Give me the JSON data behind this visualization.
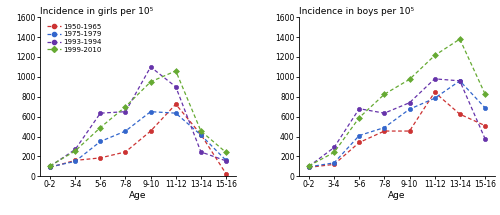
{
  "age_labels": [
    "0-2",
    "3-4",
    "5-6",
    "7-8",
    "9-10",
    "11-12",
    "13-14",
    "15-16"
  ],
  "girls": {
    "1950-1965": [
      90,
      160,
      185,
      245,
      455,
      725,
      420,
      25
    ],
    "1975-1979": [
      95,
      150,
      350,
      455,
      650,
      635,
      415,
      160
    ],
    "1993-1994": [
      100,
      270,
      635,
      650,
      1100,
      900,
      245,
      155
    ],
    "1999-2010": [
      105,
      255,
      490,
      700,
      950,
      1060,
      455,
      240
    ]
  },
  "boys": {
    "1950-1965": [
      90,
      120,
      340,
      455,
      455,
      845,
      625,
      510
    ],
    "1975-1979": [
      95,
      135,
      410,
      490,
      675,
      785,
      960,
      690
    ],
    "1993-1994": [
      100,
      290,
      680,
      635,
      740,
      980,
      960,
      380
    ],
    "1999-2010": [
      105,
      240,
      590,
      825,
      975,
      1215,
      1380,
      830
    ]
  },
  "series_colors": {
    "1950-1965": "#cc3333",
    "1975-1979": "#3366cc",
    "1993-1994": "#6633aa",
    "1999-2010": "#66aa33"
  },
  "markers": {
    "1950-1965": "o",
    "1975-1979": "o",
    "1993-1994": "o",
    "1999-2010": "D"
  },
  "ylim": [
    0,
    1600
  ],
  "yticks": [
    0,
    200,
    400,
    600,
    800,
    1000,
    1200,
    1400,
    1600
  ],
  "title_girls": "Incidence in girls per 10⁵",
  "title_boys": "Incidence in boys per 10⁵",
  "xlabel": "Age",
  "legend_order": [
    "1950-1965",
    "1975-1979",
    "1993-1994",
    "1999-2010"
  ]
}
